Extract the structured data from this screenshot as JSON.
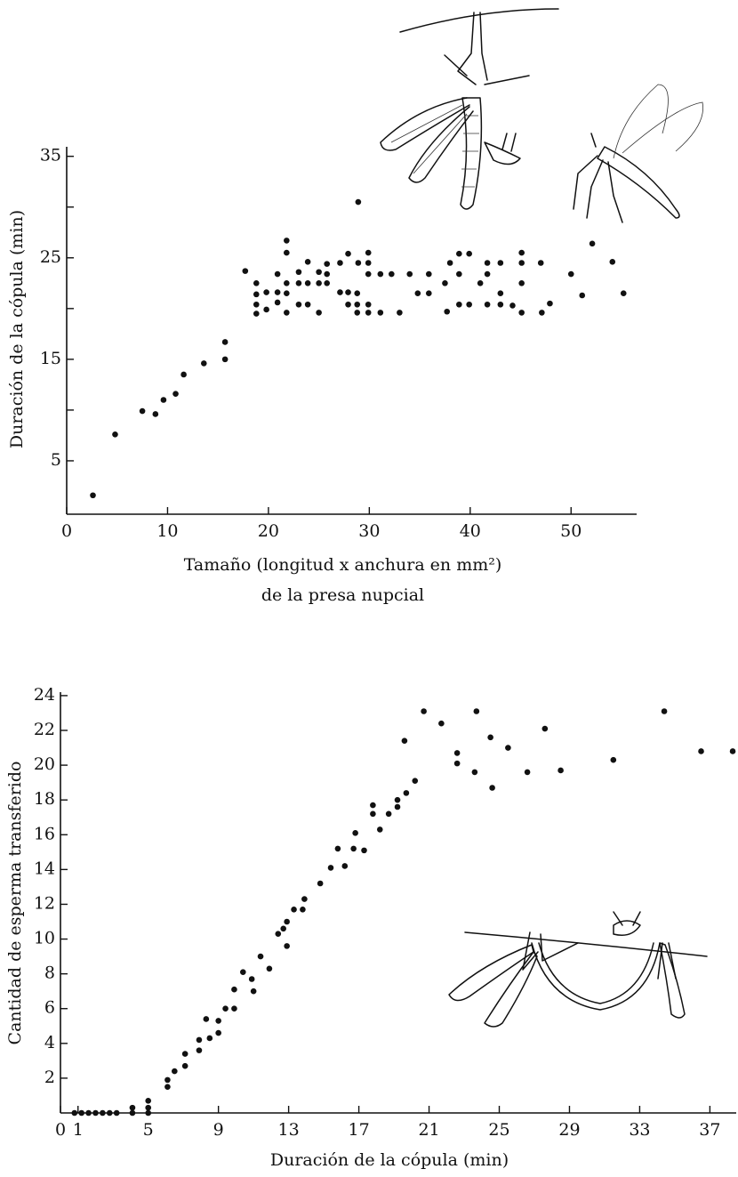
{
  "chart_data": [
    {
      "type": "scatter",
      "ylabel": "Duración de la cópula (min)",
      "xlabel": [
        "Tamaño (longitud x anchura en mm²)",
        "de la presa nupcial"
      ],
      "xlim": [
        0,
        56.5
      ],
      "ylim": [
        0,
        35.5
      ],
      "xticks": [
        0,
        10,
        20,
        30,
        40,
        50
      ],
      "yticks": [
        5,
        15,
        25,
        35
      ],
      "yminorticks": [
        10,
        20,
        30
      ],
      "color": "#111111",
      "x": [
        2.6,
        4.8,
        7.5,
        8.8,
        9.6,
        10.8,
        11.6,
        13.6,
        15.7,
        15.7,
        17.7,
        18.8,
        18.8,
        18.8,
        18.8,
        19.8,
        19.8,
        20.9,
        20.9,
        20.9,
        21.8,
        21.8,
        21.8,
        21.8,
        21.8,
        23.0,
        23.0,
        23.0,
        23.9,
        23.9,
        23.9,
        25.0,
        25.0,
        25.0,
        25.8,
        25.8,
        25.8,
        27.1,
        27.1,
        27.9,
        27.9,
        27.9,
        28.8,
        28.8,
        28.8,
        28.9,
        28.9,
        29.9,
        29.9,
        29.9,
        29.9,
        29.9,
        31.1,
        31.1,
        32.2,
        33.0,
        34.0,
        34.8,
        35.9,
        35.9,
        37.5,
        37.7,
        38.0,
        38.9,
        38.9,
        38.9,
        39.9,
        39.9,
        41.0,
        41.7,
        41.7,
        41.7,
        43.0,
        43.0,
        43.0,
        44.2,
        45.1,
        45.1,
        45.1,
        45.1,
        47.0,
        47.1,
        47.9,
        50.0,
        51.1,
        52.1,
        54.1,
        55.2
      ],
      "values": [
        1.6,
        7.6,
        9.9,
        9.6,
        11.0,
        11.6,
        13.5,
        14.6,
        15.0,
        16.7,
        23.7,
        22.5,
        21.4,
        20.4,
        19.5,
        21.6,
        19.9,
        23.4,
        21.6,
        20.6,
        26.7,
        25.5,
        22.5,
        21.5,
        19.6,
        23.6,
        22.5,
        20.4,
        24.6,
        22.5,
        20.4,
        23.6,
        22.5,
        19.6,
        24.4,
        23.4,
        22.5,
        24.5,
        21.6,
        25.4,
        21.6,
        20.4,
        21.5,
        20.4,
        19.6,
        30.5,
        24.5,
        25.5,
        24.5,
        23.4,
        20.4,
        19.6,
        23.4,
        19.6,
        23.4,
        19.6,
        23.4,
        21.5,
        21.5,
        23.4,
        22.5,
        19.7,
        24.5,
        25.4,
        23.4,
        20.4,
        25.4,
        20.4,
        22.5,
        24.5,
        20.4,
        23.4,
        24.5,
        21.5,
        20.4,
        20.3,
        25.5,
        24.5,
        22.5,
        19.6,
        24.5,
        19.6,
        20.5,
        23.4,
        21.3,
        26.4,
        24.6,
        21.5
      ]
    },
    {
      "type": "scatter",
      "ylabel": "Cantidad de esperma transferido",
      "xlabel": [
        "Duración de la cópula (min)"
      ],
      "xlim": [
        0,
        38.5
      ],
      "ylim": [
        0,
        24.2
      ],
      "xticks": [
        0,
        1,
        5,
        9,
        13,
        17,
        21,
        25,
        29,
        33,
        37
      ],
      "yticks": [
        2,
        4,
        6,
        8,
        10,
        12,
        14,
        16,
        18,
        20,
        22,
        24
      ],
      "color": "#111111",
      "x": [
        0.8,
        1.2,
        1.6,
        2.0,
        2.4,
        2.8,
        3.2,
        4.1,
        4.1,
        5.0,
        5.0,
        5.0,
        6.1,
        6.1,
        6.5,
        7.1,
        7.1,
        7.9,
        7.9,
        8.3,
        8.5,
        9.0,
        9.0,
        9.4,
        9.9,
        9.9,
        10.4,
        10.9,
        11.0,
        11.4,
        11.9,
        12.4,
        12.7,
        12.9,
        12.9,
        13.3,
        13.8,
        13.9,
        14.8,
        15.4,
        15.8,
        16.2,
        16.7,
        16.8,
        17.3,
        17.8,
        17.8,
        18.2,
        18.7,
        19.2,
        19.2,
        19.6,
        19.7,
        20.2,
        20.7,
        21.7,
        22.6,
        22.6,
        23.7,
        23.6,
        24.5,
        24.6,
        25.5,
        26.6,
        27.6,
        28.5,
        31.5,
        34.4,
        36.5,
        38.3
      ],
      "values": [
        0,
        0,
        0,
        0,
        0,
        0,
        0,
        0.3,
        0,
        0.7,
        0.3,
        0,
        1.9,
        1.5,
        2.4,
        3.4,
        2.7,
        4.2,
        3.6,
        5.4,
        4.3,
        5.3,
        4.6,
        6.0,
        6.0,
        7.1,
        8.1,
        7.7,
        7.0,
        9.0,
        8.3,
        10.3,
        10.6,
        11.0,
        9.6,
        11.7,
        11.7,
        12.3,
        13.2,
        14.1,
        15.2,
        14.2,
        15.2,
        16.1,
        15.1,
        17.7,
        17.2,
        16.3,
        17.2,
        18.0,
        17.6,
        21.4,
        18.4,
        19.1,
        23.1,
        22.4,
        20.7,
        20.1,
        23.1,
        19.6,
        21.6,
        18.7,
        21.0,
        19.6,
        22.1,
        19.7,
        20.3,
        23.1,
        20.8,
        20.8
      ]
    }
  ]
}
